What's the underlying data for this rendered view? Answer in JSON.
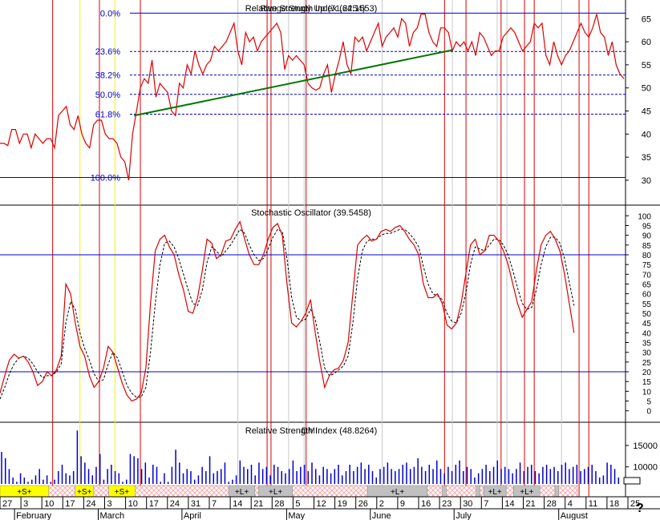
{
  "colors": {
    "price": "#dd0000",
    "fib": "#0000cc",
    "trend": "#007700",
    "signal": "#000000",
    "vbar": "#0000cc",
    "vline_red": "#dd0000",
    "vline_yellow": "#ffee00",
    "vline_gray": "#c8c8c8",
    "band_yellow": "#ffff00",
    "band_gray": "#c0c0c0",
    "band_hatch": "#ff9999"
  },
  "help_mark": "?",
  "chart_data": [
    {
      "type": "line",
      "title": "Relative Strength Index (64.1553)",
      "title_overlay": "Range Study Up (71.2254)",
      "ylim": [
        26,
        68
      ],
      "y_ticks": [
        30,
        35,
        40,
        45,
        50,
        55,
        60,
        65
      ],
      "fib_levels": [
        {
          "label": "0.0%",
          "value": 66.2
        },
        {
          "label": "23.6%",
          "value": 57.9
        },
        {
          "label": "38.2%",
          "value": 52.8
        },
        {
          "label": "50.0%",
          "value": 48.6
        },
        {
          "label": "61.8%",
          "value": 44.3
        },
        {
          "label": "100.0%",
          "value": 30.6
        }
      ],
      "trendline": {
        "from": [
          34.4,
          44.0
        ],
        "to": [
          116,
          58.2
        ]
      },
      "series": [
        {
          "values": [
            38,
            38,
            37.5,
            41,
            41,
            38,
            40,
            40,
            37,
            40,
            39,
            38,
            39,
            39,
            37,
            44,
            45,
            46,
            42,
            41,
            44,
            40,
            38,
            37,
            42,
            43,
            43,
            40,
            39,
            39,
            38,
            35,
            34,
            30,
            40,
            45,
            50,
            52,
            51,
            56,
            48,
            51,
            50,
            49,
            45,
            44,
            51,
            50,
            55,
            53,
            58,
            55,
            53,
            55,
            56,
            59,
            58,
            59,
            60,
            62,
            64,
            58,
            55,
            62,
            60,
            61,
            58,
            60,
            61,
            62,
            63,
            64,
            62,
            54,
            57,
            56,
            57,
            56,
            55,
            51,
            50,
            49.5,
            50,
            53,
            55,
            49,
            53,
            56,
            60,
            55,
            53,
            61,
            60,
            61,
            58,
            60,
            62,
            64,
            59,
            61,
            62,
            63,
            61,
            65,
            64,
            59,
            62,
            63,
            66,
            66,
            62,
            60,
            59,
            63,
            63,
            62,
            58,
            60,
            59,
            60,
            58,
            60,
            57,
            62,
            61,
            59,
            57,
            58,
            58,
            61,
            62,
            63,
            62,
            60,
            58,
            59,
            60,
            64,
            63,
            64,
            57,
            55,
            60,
            57,
            55,
            57,
            58,
            60,
            62,
            64,
            62,
            61,
            63,
            66,
            62,
            61,
            57,
            60,
            55,
            53,
            52
          ]
        }
      ]
    },
    {
      "type": "line",
      "title": "Stochastic Oscillator (39.5458)",
      "ylim": [
        -3,
        103
      ],
      "y_ticks": [
        0,
        5,
        10,
        15,
        20,
        25,
        30,
        35,
        40,
        45,
        50,
        55,
        60,
        65,
        70,
        75,
        80,
        85,
        90,
        95,
        100
      ],
      "reference_lines": [
        20,
        80
      ],
      "series": [
        {
          "values": [
            9,
            18,
            26,
            29,
            27,
            28,
            25,
            20,
            13,
            15,
            20,
            18,
            21,
            28,
            65,
            60,
            45,
            33,
            28,
            18,
            12,
            15,
            22,
            33,
            30,
            22,
            14,
            8,
            5,
            6,
            9,
            22,
            55,
            82,
            88,
            90,
            84,
            80,
            70,
            62,
            51,
            50,
            58,
            72,
            88,
            86,
            78,
            80,
            87,
            88,
            93,
            97,
            88,
            80,
            75,
            75,
            80,
            88,
            94,
            96,
            90,
            65,
            45,
            43,
            46,
            50,
            57,
            40,
            25,
            12,
            18,
            21,
            22,
            26,
            35,
            60,
            85,
            88,
            90,
            87,
            88,
            92,
            93,
            92,
            94,
            95,
            92,
            88,
            85,
            80,
            65,
            58,
            58,
            60,
            55,
            44,
            42,
            45,
            55,
            70,
            85,
            88,
            80,
            82,
            90,
            90,
            87,
            82,
            75,
            65,
            55,
            48,
            52,
            56,
            72,
            85,
            90,
            92,
            88,
            82,
            70,
            55,
            40
          ]
        },
        {
          "name": "signal",
          "values": [
            6,
            12,
            19,
            24,
            27,
            28,
            27,
            24,
            20,
            17,
            18,
            18,
            20,
            24,
            45,
            56,
            52,
            40,
            32,
            26,
            19,
            15,
            16,
            24,
            30,
            27,
            20,
            13,
            9,
            7,
            7,
            12,
            30,
            55,
            75,
            86,
            87,
            84,
            78,
            70,
            62,
            55,
            54,
            62,
            76,
            84,
            82,
            79,
            82,
            85,
            89,
            93,
            91,
            85,
            80,
            77,
            78,
            83,
            89,
            93,
            92,
            78,
            58,
            48,
            46,
            47,
            52,
            47,
            35,
            22,
            18,
            19,
            21,
            23,
            28,
            45,
            68,
            82,
            87,
            88,
            88,
            90,
            91,
            91,
            92,
            93,
            93,
            91,
            88,
            84,
            74,
            65,
            60,
            59,
            57,
            50,
            46,
            45,
            50,
            60,
            75,
            84,
            83,
            82,
            85,
            88,
            88,
            85,
            80,
            72,
            63,
            55,
            52,
            53,
            62,
            75,
            84,
            89,
            89,
            86,
            78,
            66,
            54
          ]
        }
      ]
    },
    {
      "type": "bar",
      "title": "Relative Strength Index (48.8264)",
      "title_overlay": "DMI",
      "ylim": [
        6000,
        19500
      ],
      "y_ticks": [
        10000,
        15000
      ],
      "values": [
        13500,
        12000,
        9500,
        7500,
        6500,
        8500,
        7500,
        6500,
        7000,
        8000,
        9500,
        7000,
        8000,
        6500,
        7000,
        9000,
        10500,
        8500,
        8000,
        9000,
        18500,
        12500,
        11000,
        9500,
        8000,
        10000,
        13000,
        7000,
        9500,
        10500,
        9000,
        8500,
        6500,
        7000,
        13000,
        12500,
        12000,
        9500,
        11000,
        7500,
        10500,
        10000,
        6500,
        8500,
        6500,
        10000,
        14000,
        11000,
        8500,
        9500,
        9000,
        7000,
        8000,
        10000,
        9000,
        12500,
        8500,
        9000,
        9500,
        11000,
        6500,
        7000,
        8000,
        11500,
        10000,
        9500,
        10500,
        8000,
        11000,
        9500,
        10000,
        8000,
        10500,
        10000,
        9000,
        8500,
        9500,
        11500,
        9000,
        10000,
        10500,
        9000,
        11000,
        9500,
        8000,
        10000,
        9500,
        8500,
        9500,
        10500,
        8000,
        9000,
        10500,
        9000,
        10000,
        11000,
        9500,
        10500,
        9000,
        7500,
        9500,
        10000,
        11000,
        9500,
        9000,
        9500,
        10500,
        11000,
        9500,
        10000,
        12000,
        10000,
        9000,
        10500,
        9500,
        11500,
        9500,
        8500,
        10000,
        9000,
        10500,
        11500,
        9000,
        10000,
        9500,
        7500,
        8500,
        9500,
        10500,
        9000,
        10000,
        11500,
        9500,
        10000,
        9500,
        8500,
        9500,
        11000,
        9000,
        10000,
        10500,
        9000,
        8500,
        10000,
        10500,
        9500,
        10000,
        9000,
        10500,
        11000,
        9500,
        10000,
        10500,
        9000,
        9500,
        10000,
        10500,
        9000,
        7500,
        8000,
        11000,
        10500,
        9500,
        7500
      ]
    }
  ],
  "signal_strip": {
    "bands": [
      {
        "kind": "yellow",
        "start": 0,
        "end": 13,
        "label": "+S+"
      },
      {
        "kind": "hatch",
        "start": 13,
        "end": 20,
        "label": ""
      },
      {
        "kind": "yellow",
        "start": 20,
        "end": 25,
        "label": "+S+"
      },
      {
        "kind": "hatch",
        "start": 25,
        "end": 29,
        "label": ""
      },
      {
        "kind": "yellow",
        "start": 29,
        "end": 36,
        "label": "+S+"
      },
      {
        "kind": "hatch",
        "start": 36,
        "end": 61,
        "label": ""
      },
      {
        "kind": "gray",
        "start": 61,
        "end": 68,
        "label": "+L+"
      },
      {
        "kind": "hatch",
        "start": 68,
        "end": 69,
        "label": ""
      },
      {
        "kind": "gray",
        "start": 69,
        "end": 78,
        "label": "+L+"
      },
      {
        "kind": "hatch",
        "start": 78,
        "end": 98,
        "label": ""
      },
      {
        "kind": "gray",
        "start": 98,
        "end": 114,
        "label": "+L+"
      },
      {
        "kind": "hatch",
        "start": 114,
        "end": 118,
        "label": ""
      },
      {
        "kind": "gray",
        "start": 118,
        "end": 119,
        "label": ""
      },
      {
        "kind": "hatch",
        "start": 119,
        "end": 127,
        "label": ""
      },
      {
        "kind": "gray",
        "start": 127,
        "end": 128,
        "label": ""
      },
      {
        "kind": "hatch",
        "start": 128,
        "end": 129,
        "label": ""
      },
      {
        "kind": "gray",
        "start": 129,
        "end": 135,
        "label": "+L+"
      },
      {
        "kind": "hatch",
        "start": 135,
        "end": 137,
        "label": ""
      },
      {
        "kind": "gray",
        "start": 137,
        "end": 144,
        "label": "+L+"
      },
      {
        "kind": "hatch",
        "start": 144,
        "end": 148,
        "label": ""
      },
      {
        "kind": "gray",
        "start": 148,
        "end": 149,
        "label": ""
      },
      {
        "kind": "hatch",
        "start": 149,
        "end": 154,
        "label": ""
      }
    ]
  },
  "event_lines": [
    {
      "kind": "red",
      "index": 13.5
    },
    {
      "kind": "yellow",
      "index": 20.5
    },
    {
      "kind": "red",
      "index": 25.5
    },
    {
      "kind": "yellow",
      "index": 29.5
    },
    {
      "kind": "red",
      "index": 36
    },
    {
      "kind": "gray",
      "index": 61
    },
    {
      "kind": "red",
      "index": 68.5
    },
    {
      "kind": "red",
      "index": 69.5
    },
    {
      "kind": "gray",
      "index": 74
    },
    {
      "kind": "gray",
      "index": 78
    },
    {
      "kind": "red",
      "index": 78.5
    },
    {
      "kind": "gray",
      "index": 98
    },
    {
      "kind": "red",
      "index": 114
    },
    {
      "kind": "gray",
      "index": 116
    },
    {
      "kind": "red",
      "index": 119.5
    },
    {
      "kind": "gray",
      "index": 127.5
    },
    {
      "kind": "red",
      "index": 128.5
    },
    {
      "kind": "gray",
      "index": 130
    },
    {
      "kind": "red",
      "index": 134.5
    },
    {
      "kind": "red",
      "index": 137
    },
    {
      "kind": "gray",
      "index": 144
    },
    {
      "kind": "red",
      "index": 148.5
    },
    {
      "kind": "red",
      "index": 151
    }
  ],
  "x_axis": {
    "day_ticks": [
      "27",
      "3",
      "10",
      "17",
      "24",
      "3",
      "10",
      "17",
      "24",
      "31",
      "7",
      "14",
      "21",
      "28",
      "5",
      "12",
      "19",
      "26",
      "2",
      "9",
      "16",
      "23",
      "30",
      "7",
      "14",
      "21",
      "28",
      "4",
      "11",
      "18",
      "25"
    ],
    "months": [
      {
        "label": "February",
        "tick": 1
      },
      {
        "label": "March",
        "tick": 5
      },
      {
        "label": "April",
        "tick": 9
      },
      {
        "label": "May",
        "tick": 14
      },
      {
        "label": "June",
        "tick": 18
      },
      {
        "label": "July",
        "tick": 22
      },
      {
        "label": "August",
        "tick": 27
      }
    ]
  }
}
